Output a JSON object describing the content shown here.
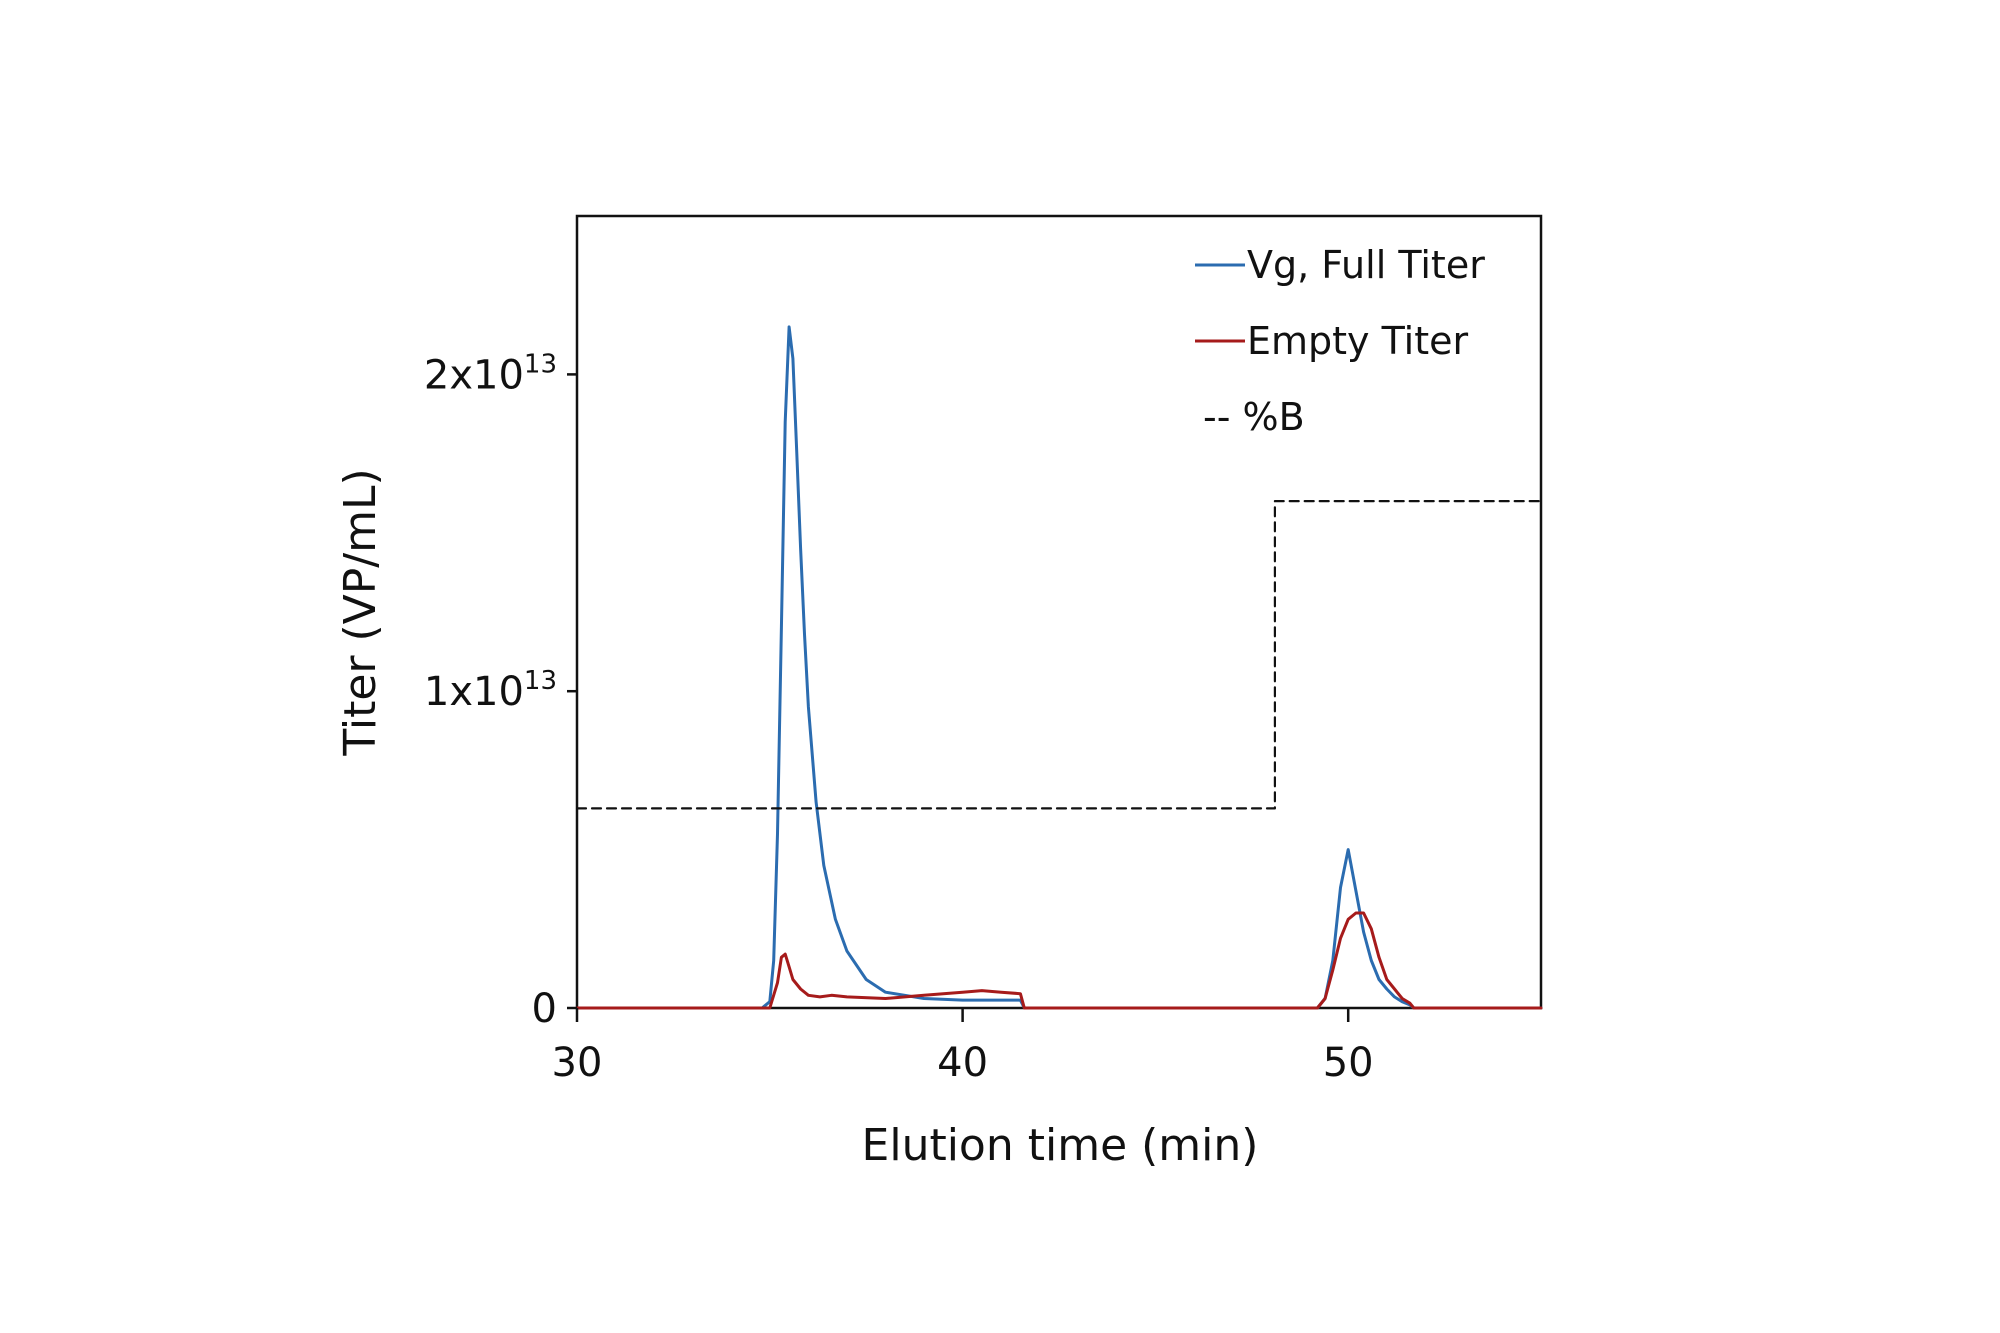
{
  "chart_data": {
    "type": "line",
    "xlabel": "Elution time (min)",
    "ylabel": "Titer (VP/mL)",
    "xlim": [
      30,
      55
    ],
    "ylim": [
      0,
      25000000000000.0
    ],
    "x_ticks": [
      {
        "value": 30,
        "label": "30"
      },
      {
        "value": 40,
        "label": "40"
      },
      {
        "value": 50,
        "label": "50"
      }
    ],
    "y_ticks": [
      {
        "value": 0,
        "mantissa": "0",
        "exponent": ""
      },
      {
        "value": 10000000000000.0,
        "mantissa": "1x10",
        "exponent": "13"
      },
      {
        "value": 20000000000000.0,
        "mantissa": "2x10",
        "exponent": "13"
      }
    ],
    "grid": false,
    "legend_position": "top-right",
    "series": [
      {
        "name": "Vg, Full Titer",
        "color": "#2b6cb0",
        "style": "solid",
        "x": [
          30,
          34.8,
          35.0,
          35.1,
          35.2,
          35.3,
          35.4,
          35.5,
          35.6,
          35.7,
          35.8,
          35.9,
          36.0,
          36.2,
          36.4,
          36.7,
          37.0,
          37.5,
          38.0,
          39.0,
          40.0,
          41.0,
          41.5,
          41.6,
          49.2,
          49.4,
          49.6,
          49.8,
          50.0,
          50.2,
          50.4,
          50.6,
          50.8,
          51.0,
          51.2,
          51.4,
          51.6,
          51.7,
          55
        ],
        "y": [
          0,
          0,
          200000000000.0,
          1500000000000.0,
          5500000000000.0,
          12000000000000.0,
          18500000000000.0,
          21500000000000.0,
          20500000000000.0,
          17500000000000.0,
          14500000000000.0,
          11800000000000.0,
          9500000000000.0,
          6500000000000.0,
          4500000000000.0,
          2800000000000.0,
          1800000000000.0,
          900000000000.0,
          500000000000.0,
          300000000000.0,
          250000000000.0,
          250000000000.0,
          250000000000.0,
          0,
          0,
          300000000000.0,
          1500000000000.0,
          3800000000000.0,
          5000000000000.0,
          3700000000000.0,
          2400000000000.0,
          1500000000000.0,
          900000000000.0,
          600000000000.0,
          350000000000.0,
          200000000000.0,
          100000000000.0,
          0,
          0
        ]
      },
      {
        "name": "Empty Titer",
        "color": "#a61b1b",
        "style": "solid",
        "x": [
          30,
          35.0,
          35.2,
          35.3,
          35.4,
          35.5,
          35.6,
          35.8,
          36.0,
          36.3,
          36.6,
          37.0,
          38.0,
          39.0,
          40.0,
          40.5,
          41.0,
          41.5,
          41.6,
          49.2,
          49.4,
          49.6,
          49.8,
          50.0,
          50.2,
          50.4,
          50.6,
          50.8,
          51.0,
          51.2,
          51.4,
          51.6,
          51.7,
          55
        ],
        "y": [
          0,
          0,
          800000000000.0,
          1600000000000.0,
          1700000000000.0,
          1300000000000.0,
          900000000000.0,
          600000000000.0,
          400000000000.0,
          350000000000.0,
          400000000000.0,
          350000000000.0,
          300000000000.0,
          400000000000.0,
          500000000000.0,
          550000000000.0,
          500000000000.0,
          450000000000.0,
          0,
          0,
          300000000000.0,
          1200000000000.0,
          2200000000000.0,
          2800000000000.0,
          3000000000000.0,
          3000000000000.0,
          2500000000000.0,
          1600000000000.0,
          900000000000.0,
          600000000000.0,
          300000000000.0,
          150000000000.0,
          0,
          0
        ]
      },
      {
        "name": "%B",
        "color": "#111111",
        "style": "dashed",
        "x": [
          30,
          48.1,
          48.1,
          55
        ],
        "y": [
          6300000000000.0,
          6300000000000.0,
          16000000000000.0,
          16000000000000.0
        ]
      }
    ],
    "legend": [
      {
        "series": 0,
        "label": "Vg, Full Titer",
        "marker": "solid"
      },
      {
        "series": 1,
        "label": "Empty Titer",
        "marker": "solid"
      },
      {
        "series": 2,
        "label": "-- %B",
        "marker": "text"
      }
    ]
  }
}
